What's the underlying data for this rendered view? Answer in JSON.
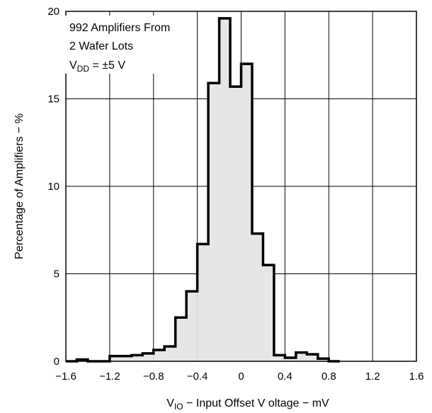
{
  "chart_data": {
    "type": "histogram",
    "xlabel": {
      "main": "V",
      "sub": "IO",
      "rest": " − Input Offset V oltage − mV"
    },
    "ylabel": "Percentage of  Amplifiers − %",
    "xlim": [
      -1.6,
      1.6
    ],
    "ylim": [
      0,
      20
    ],
    "grid": true,
    "xticks": [
      {
        "value": -1.6,
        "label": "−1.6"
      },
      {
        "value": -1.2,
        "label": "−1.2"
      },
      {
        "value": -0.8,
        "label": "−0.8"
      },
      {
        "value": -0.4,
        "label": "−0.4"
      },
      {
        "value": 0,
        "label": "0"
      },
      {
        "value": 0.4,
        "label": "0.4"
      },
      {
        "value": 0.8,
        "label": "0.8"
      },
      {
        "value": 1.2,
        "label": "1.2"
      },
      {
        "value": 1.6,
        "label": "1.6"
      }
    ],
    "yticks": [
      {
        "value": 0,
        "label": "0"
      },
      {
        "value": 5,
        "label": "5"
      },
      {
        "value": 10,
        "label": "10"
      },
      {
        "value": 15,
        "label": "15"
      },
      {
        "value": 20,
        "label": "20"
      }
    ],
    "bin_width": 0.1,
    "bins": [
      {
        "x0": -1.6,
        "value": 0
      },
      {
        "x0": -1.5,
        "value": 0.1
      },
      {
        "x0": -1.4,
        "value": 0
      },
      {
        "x0": -1.3,
        "value": 0
      },
      {
        "x0": -1.2,
        "value": 0.3
      },
      {
        "x0": -1.1,
        "value": 0.3
      },
      {
        "x0": -1.0,
        "value": 0.35
      },
      {
        "x0": -0.9,
        "value": 0.45
      },
      {
        "x0": -0.8,
        "value": 0.65
      },
      {
        "x0": -0.7,
        "value": 0.85
      },
      {
        "x0": -0.6,
        "value": 2.5
      },
      {
        "x0": -0.5,
        "value": 4.0
      },
      {
        "x0": -0.4,
        "value": 6.7
      },
      {
        "x0": -0.3,
        "value": 15.9
      },
      {
        "x0": -0.2,
        "value": 19.6
      },
      {
        "x0": -0.1,
        "value": 15.7
      },
      {
        "x0": 0.0,
        "value": 17.0
      },
      {
        "x0": 0.1,
        "value": 7.3
      },
      {
        "x0": 0.2,
        "value": 5.5
      },
      {
        "x0": 0.3,
        "value": 0.35
      },
      {
        "x0": 0.4,
        "value": 0.2
      },
      {
        "x0": 0.5,
        "value": 0.5
      },
      {
        "x0": 0.6,
        "value": 0.4
      },
      {
        "x0": 0.7,
        "value": 0.15
      },
      {
        "x0": 0.8,
        "value": 0
      }
    ],
    "annotation": {
      "line1": "992 Amplifiers From",
      "line2": "2 Wafer Lots",
      "line3_main": "V",
      "line3_sub": "DD",
      "line3_rest": " = ±5 V"
    },
    "colors": {
      "fill": "#e6e6e6",
      "stroke": "#000000",
      "grid": "#000000"
    }
  }
}
